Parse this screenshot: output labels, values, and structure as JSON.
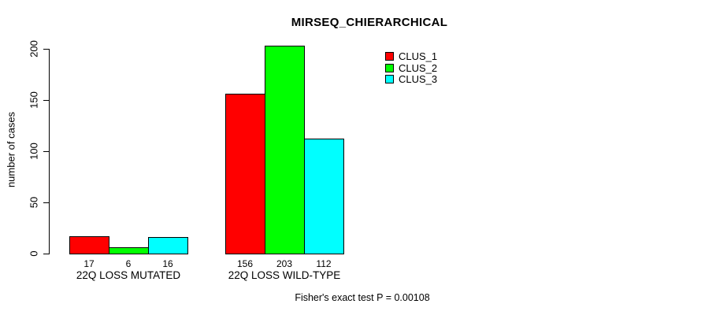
{
  "chart_data": {
    "type": "bar",
    "title": "MIRSEQ_CHIERARCHICAL",
    "xlabel": "",
    "ylabel": "number of cases",
    "ylim": [
      0,
      200
    ],
    "yticks": [
      0,
      50,
      100,
      150,
      200
    ],
    "grid": false,
    "legend_position": "top-right",
    "bar_value_labels": true,
    "categories": [
      "22Q LOSS MUTATED",
      "22Q LOSS WILD-TYPE"
    ],
    "series": [
      {
        "name": "CLUS_1",
        "color": "#ff0000",
        "values": [
          17,
          156
        ]
      },
      {
        "name": "CLUS_2",
        "color": "#00ff00",
        "values": [
          6,
          203
        ]
      },
      {
        "name": "CLUS_3",
        "color": "#00ffff",
        "values": [
          16,
          112
        ]
      }
    ],
    "annotation": "Fisher's exact test P = 0.00108"
  }
}
